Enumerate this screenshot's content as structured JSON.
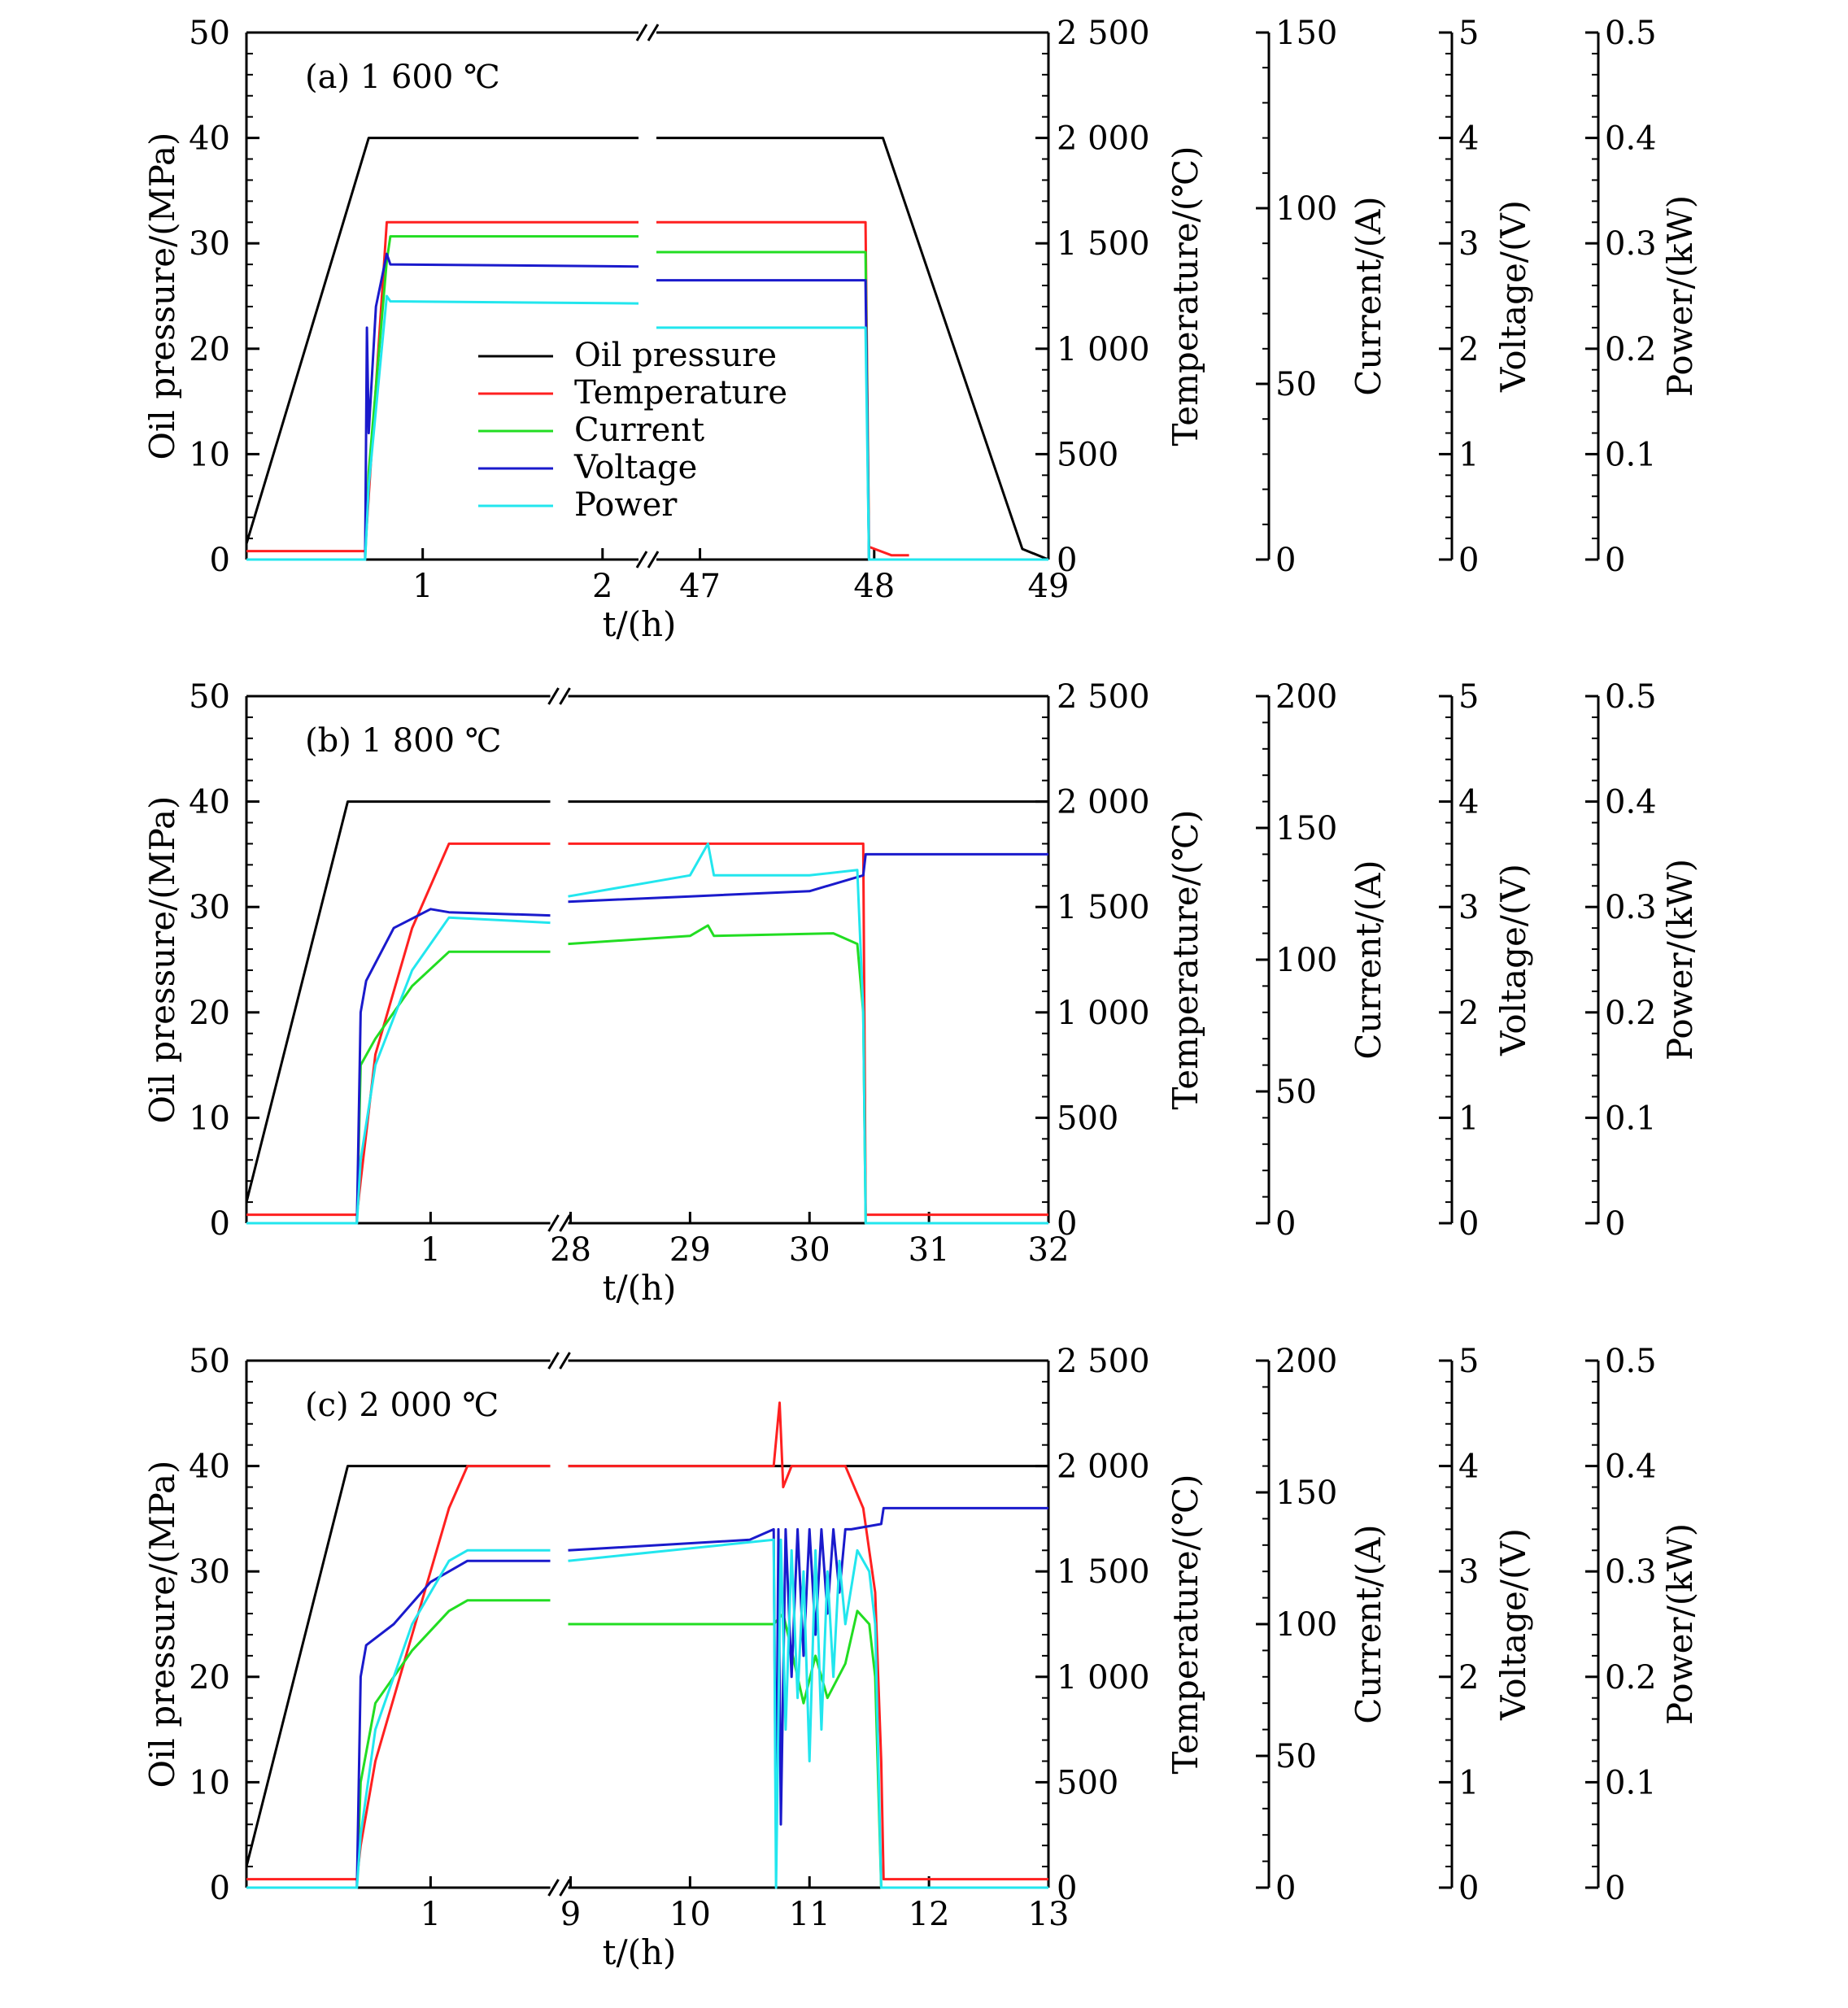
{
  "colors": {
    "oil_pressure": "#000000",
    "temperature": "#ff2020",
    "current": "#22dd22",
    "voltage": "#1a1acc",
    "power": "#22e6ee"
  },
  "legend": [
    "Oil pressure",
    "Temperature",
    "Current",
    "Voltage",
    "Power"
  ],
  "chart_data": [
    {
      "type": "line",
      "title": "(a) 1 600 ℃",
      "xlabel": "t/(h)",
      "ylabel_left": "Oil pressure/(MPa)",
      "ylabel_right": [
        "Temperature/(℃)",
        "Current/(A)",
        "Voltage/(V)",
        "Power/(kW)"
      ],
      "broken_x_axis": true,
      "x_segments": [
        {
          "range": [
            0.02,
            2.2
          ],
          "ticks": [
            "1",
            "2"
          ]
        },
        {
          "range": [
            46.75,
            49.0
          ],
          "ticks": [
            "47",
            "48",
            "49"
          ]
        }
      ],
      "axes": [
        {
          "name": "Oil pressure/(MPa)",
          "ylim": [
            0,
            50
          ],
          "ticks": [
            "0",
            "10",
            "20",
            "30",
            "40",
            "50"
          ]
        },
        {
          "name": "Temperature/(℃)",
          "ylim": [
            0,
            2500
          ],
          "ticks": [
            "0",
            "500",
            "1 000",
            "1 500",
            "2 000",
            "2 500"
          ]
        },
        {
          "name": "Current/(A)",
          "ylim": [
            0,
            150
          ],
          "ticks": [
            "0",
            "50",
            "100",
            "150"
          ]
        },
        {
          "name": "Voltage/(V)",
          "ylim": [
            0,
            5
          ],
          "ticks": [
            "0",
            "1",
            "2",
            "3",
            "4",
            "5"
          ]
        },
        {
          "name": "Power/(kW)",
          "ylim": [
            0,
            0.5
          ],
          "ticks": [
            "0",
            "0.1",
            "0.2",
            "0.3",
            "0.4",
            "0.5"
          ]
        }
      ],
      "series": [
        {
          "name": "Oil pressure",
          "axis": 0,
          "x": [
            0.02,
            0.7,
            2.2,
            46.75,
            48.05,
            48.85,
            49.0
          ],
          "y": [
            1.5,
            40,
            40,
            40,
            40,
            1,
            0
          ]
        },
        {
          "name": "Temperature",
          "axis": 1,
          "x": [
            0.02,
            0.68,
            0.7,
            0.8,
            2.2,
            46.75,
            47.95,
            47.97,
            48.1,
            48.2
          ],
          "y": [
            40,
            40,
            300,
            1600,
            1600,
            1600,
            1600,
            60,
            20,
            20
          ]
        },
        {
          "name": "Current",
          "axis": 2,
          "x": [
            0.02,
            0.68,
            0.7,
            0.8,
            0.82,
            2.2,
            46.75,
            47.95,
            47.97,
            49.0
          ],
          "y": [
            0,
            0,
            25,
            85,
            92,
            92,
            87.5,
            87.5,
            0,
            0
          ]
        },
        {
          "name": "Voltage",
          "axis": 3,
          "x": [
            0.02,
            0.68,
            0.69,
            0.7,
            0.74,
            0.8,
            0.82,
            2.2,
            46.75,
            47.95,
            47.97,
            49.0
          ],
          "y": [
            0,
            0,
            2.2,
            1.2,
            2.4,
            2.9,
            2.8,
            2.78,
            2.65,
            2.65,
            0,
            0
          ]
        },
        {
          "name": "Power",
          "axis": 4,
          "x": [
            0.02,
            0.68,
            0.7,
            0.8,
            0.82,
            2.2,
            46.75,
            47.95,
            47.97,
            49.0
          ],
          "y": [
            0,
            0,
            0.07,
            0.25,
            0.245,
            0.243,
            0.22,
            0.22,
            0,
            0
          ]
        }
      ]
    },
    {
      "type": "line",
      "title": "(b) 1 800 ℃",
      "xlabel": "t/(h)",
      "ylabel_left": "Oil pressure/(MPa)",
      "ylabel_right": [
        "Temperature/(℃)",
        "Current/(A)",
        "Voltage/(V)",
        "Power/(kW)"
      ],
      "broken_x_axis": true,
      "x_segments": [
        {
          "range": [
            0.0,
            1.65
          ],
          "ticks": [
            "1"
          ]
        },
        {
          "range": [
            27.98,
            32.0
          ],
          "ticks": [
            "28",
            "29",
            "30",
            "31",
            "32"
          ]
        }
      ],
      "axes": [
        {
          "name": "Oil pressure/(MPa)",
          "ylim": [
            0,
            50
          ],
          "ticks": [
            "0",
            "10",
            "20",
            "30",
            "40",
            "50"
          ]
        },
        {
          "name": "Temperature/(℃)",
          "ylim": [
            0,
            2500
          ],
          "ticks": [
            "0",
            "500",
            "1 000",
            "1 500",
            "2 000",
            "2 500"
          ]
        },
        {
          "name": "Current/(A)",
          "ylim": [
            0,
            200
          ],
          "ticks": [
            "0",
            "50",
            "100",
            "150",
            "200"
          ]
        },
        {
          "name": "Voltage/(V)",
          "ylim": [
            0,
            5
          ],
          "ticks": [
            "0",
            "1",
            "2",
            "3",
            "4",
            "5"
          ]
        },
        {
          "name": "Power/(kW)",
          "ylim": [
            0,
            0.5
          ],
          "ticks": [
            "0",
            "0.1",
            "0.2",
            "0.3",
            "0.4",
            "0.5"
          ]
        }
      ],
      "series": [
        {
          "name": "Oil pressure",
          "axis": 0,
          "x": [
            0.0,
            0.55,
            1.65,
            27.98,
            32.0
          ],
          "y": [
            2,
            40,
            40,
            40,
            40
          ]
        },
        {
          "name": "Temperature",
          "axis": 1,
          "x": [
            0.0,
            0.6,
            0.62,
            0.7,
            0.9,
            1.1,
            1.65,
            27.98,
            30.45,
            30.47,
            32.0
          ],
          "y": [
            40,
            40,
            200,
            800,
            1400,
            1800,
            1800,
            1800,
            1800,
            40,
            40
          ]
        },
        {
          "name": "Current",
          "axis": 2,
          "x": [
            0.0,
            0.6,
            0.62,
            0.7,
            0.9,
            1.1,
            1.65,
            27.98,
            29.0,
            29.15,
            29.2,
            30.2,
            30.4,
            30.45,
            30.47,
            32.0
          ],
          "y": [
            0,
            0,
            60,
            70,
            90,
            103,
            103,
            106,
            109,
            113,
            109,
            110,
            106,
            80,
            0,
            0
          ]
        },
        {
          "name": "Voltage",
          "axis": 3,
          "x": [
            0.0,
            0.6,
            0.62,
            0.65,
            0.8,
            1.0,
            1.1,
            1.65,
            27.98,
            29.0,
            30.0,
            30.45,
            30.47,
            32.0
          ],
          "y": [
            0,
            0,
            2,
            2.3,
            2.8,
            2.98,
            2.95,
            2.92,
            3.05,
            3.1,
            3.15,
            3.3,
            3.5,
            3.5
          ]
        },
        {
          "name": "Power",
          "axis": 4,
          "x": [
            0.0,
            0.6,
            0.62,
            0.7,
            0.9,
            1.1,
            1.65,
            27.98,
            29.0,
            29.15,
            29.2,
            30.0,
            30.4,
            30.45,
            30.47,
            32.0
          ],
          "y": [
            0,
            0,
            0.06,
            0.15,
            0.24,
            0.29,
            0.285,
            0.31,
            0.33,
            0.36,
            0.33,
            0.33,
            0.335,
            0.2,
            0,
            0
          ]
        }
      ]
    },
    {
      "type": "line",
      "title": "(c) 2 000 ℃",
      "xlabel": "t/(h)",
      "ylabel_left": "Oil pressure/(MPa)",
      "ylabel_right": [
        "Temperature/(℃)",
        "Current/(A)",
        "Voltage/(V)",
        "Power/(kW)"
      ],
      "broken_x_axis": true,
      "x_segments": [
        {
          "range": [
            0.0,
            1.65
          ],
          "ticks": [
            "1"
          ]
        },
        {
          "range": [
            8.98,
            13.0
          ],
          "ticks": [
            "9",
            "10",
            "11",
            "12",
            "13"
          ]
        }
      ],
      "axes": [
        {
          "name": "Oil pressure/(MPa)",
          "ylim": [
            0,
            50
          ],
          "ticks": [
            "0",
            "10",
            "20",
            "30",
            "40",
            "50"
          ]
        },
        {
          "name": "Temperature/(℃)",
          "ylim": [
            0,
            2500
          ],
          "ticks": [
            "0",
            "500",
            "1 000",
            "1 500",
            "2 000",
            "2 500"
          ]
        },
        {
          "name": "Current/(A)",
          "ylim": [
            0,
            200
          ],
          "ticks": [
            "0",
            "50",
            "100",
            "150",
            "200"
          ]
        },
        {
          "name": "Voltage/(V)",
          "ylim": [
            0,
            5
          ],
          "ticks": [
            "0",
            "1",
            "2",
            "3",
            "4",
            "5"
          ]
        },
        {
          "name": "Power/(kW)",
          "ylim": [
            0,
            0.5
          ],
          "ticks": [
            "0",
            "0.1",
            "0.2",
            "0.3",
            "0.4",
            "0.5"
          ]
        }
      ],
      "series": [
        {
          "name": "Oil pressure",
          "axis": 0,
          "x": [
            0.0,
            0.55,
            1.65,
            8.98,
            13.0
          ],
          "y": [
            2,
            40,
            40,
            40,
            40
          ]
        },
        {
          "name": "Temperature",
          "axis": 1,
          "x": [
            0.0,
            0.6,
            0.62,
            0.7,
            0.9,
            1.1,
            1.2,
            1.65,
            8.98,
            10.7,
            10.75,
            10.78,
            10.85,
            10.95,
            11.3,
            11.45,
            11.55,
            11.6,
            11.62,
            13.0
          ],
          "y": [
            40,
            40,
            200,
            600,
            1200,
            1800,
            2000,
            2000,
            2000,
            2000,
            2300,
            1900,
            2000,
            2000,
            2000,
            1800,
            1400,
            600,
            40,
            40
          ]
        },
        {
          "name": "Current",
          "axis": 2,
          "x": [
            0.0,
            0.6,
            0.62,
            0.7,
            0.9,
            1.1,
            1.2,
            1.65,
            8.98,
            10.7,
            10.78,
            10.85,
            10.95,
            11.05,
            11.15,
            11.3,
            11.4,
            11.5,
            11.55,
            11.6,
            13.0
          ],
          "y": [
            0,
            0,
            40,
            70,
            90,
            105,
            109,
            109,
            100,
            100,
            104,
            90,
            70,
            88,
            72,
            85,
            105,
            100,
            80,
            0,
            0
          ]
        },
        {
          "name": "Voltage",
          "axis": 3,
          "x": [
            0.0,
            0.6,
            0.62,
            0.65,
            0.8,
            1.0,
            1.2,
            1.65,
            8.98,
            10.5,
            10.7,
            10.72,
            10.74,
            10.76,
            10.8,
            10.85,
            10.9,
            10.95,
            11.0,
            11.05,
            11.1,
            11.15,
            11.2,
            11.25,
            11.3,
            11.35,
            11.6,
            11.62,
            13.0
          ],
          "y": [
            0,
            0,
            2.0,
            2.3,
            2.5,
            2.9,
            3.1,
            3.1,
            3.2,
            3.3,
            3.4,
            0.4,
            3.4,
            0.6,
            3.4,
            2.0,
            3.4,
            2.2,
            3.4,
            2.4,
            3.4,
            2.6,
            3.4,
            2.8,
            3.4,
            3.4,
            3.45,
            3.6,
            3.6
          ]
        },
        {
          "name": "Power",
          "axis": 4,
          "x": [
            0.0,
            0.6,
            0.62,
            0.7,
            0.9,
            1.1,
            1.2,
            1.65,
            8.98,
            10.7,
            10.72,
            10.76,
            10.8,
            10.85,
            10.9,
            10.95,
            11.0,
            11.05,
            11.1,
            11.15,
            11.2,
            11.25,
            11.3,
            11.4,
            11.5,
            11.55,
            11.6,
            13.0
          ],
          "y": [
            0,
            0,
            0.05,
            0.15,
            0.25,
            0.31,
            0.32,
            0.32,
            0.31,
            0.33,
            0.0,
            0.33,
            0.15,
            0.32,
            0.18,
            0.3,
            0.12,
            0.32,
            0.15,
            0.3,
            0.2,
            0.31,
            0.25,
            0.32,
            0.3,
            0.25,
            0.0,
            0.0
          ]
        }
      ]
    }
  ]
}
